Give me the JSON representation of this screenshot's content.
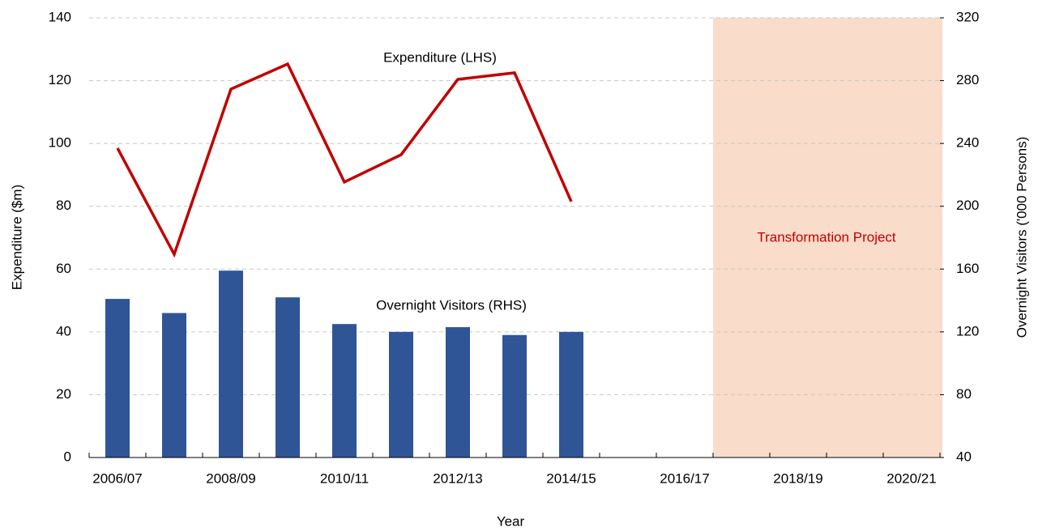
{
  "chart_data": {
    "type": "bar_line",
    "x_label": "Year",
    "y_label": "Expenditure ($m)",
    "y2_label": "Overnight Visitors ('000 Persons)",
    "categories": [
      "2006/07",
      null,
      "2008/09",
      null,
      "2010/11",
      null,
      "2012/13",
      null,
      "2014/15",
      null,
      "2016/17",
      null,
      "2018/19",
      null,
      "2020/21"
    ],
    "series": [
      {
        "name": "Expenditure (LHS)",
        "type": "line",
        "color": "#c00000",
        "axis": "y",
        "values": [
          98.5,
          64.7,
          117.3,
          125.3,
          87.7,
          96.4,
          120.4,
          122.5,
          81.5,
          null,
          null,
          null,
          null,
          null,
          null
        ]
      },
      {
        "name": "Overnight Visitors (RHS)",
        "type": "bar",
        "color": "#2f5597",
        "axis": "y2",
        "values": [
          141,
          132,
          159,
          142,
          125,
          120,
          123,
          118,
          120,
          null,
          null,
          null,
          null,
          null,
          null
        ]
      }
    ],
    "shaded_region": {
      "label": "Transformation Project",
      "color": "#f9dcc9",
      "label_color": "#c00000",
      "span": [
        11,
        15
      ]
    },
    "ylim": [
      0,
      140
    ],
    "yticks": [
      0,
      20,
      40,
      60,
      80,
      100,
      120,
      140
    ],
    "y2lim": [
      40,
      320
    ],
    "y2ticks": [
      40,
      80,
      120,
      160,
      200,
      240,
      280,
      320
    ],
    "grid": true
  }
}
